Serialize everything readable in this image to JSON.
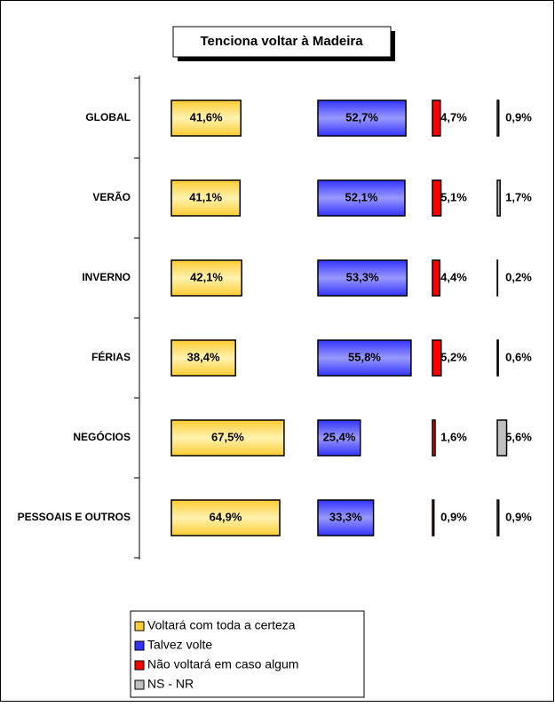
{
  "chart_data": {
    "type": "bar",
    "title": "Tenciona voltar à Madeira",
    "categories": [
      "GLOBAL",
      "VERÃO",
      "INVERNO",
      "FÉRIAS",
      "NEGÓCIOS",
      "PESSOAIS E OUTROS"
    ],
    "series": [
      {
        "name": "Voltará com toda a certeza",
        "color": "#ffcc33",
        "values": [
          41.6,
          41.1,
          42.1,
          38.4,
          67.5,
          64.9
        ],
        "value_labels": [
          "41,6%",
          "41,1%",
          "42,1%",
          "38,4%",
          "67,5%",
          "64,9%"
        ]
      },
      {
        "name": "Talvez volte",
        "color": "#3333ff",
        "values": [
          52.7,
          52.1,
          53.3,
          55.8,
          25.4,
          33.3
        ],
        "value_labels": [
          "52,7%",
          "52,1%",
          "53,3%",
          "55,8%",
          "25,4%",
          "33,3%"
        ]
      },
      {
        "name": "Não voltará em caso algum",
        "color": "#ff0000",
        "values": [
          4.7,
          5.1,
          4.4,
          5.2,
          1.6,
          0.9
        ],
        "value_labels": [
          "4,7%",
          "5,1%",
          "4,4%",
          "5,2%",
          "1,6%",
          "0,9%"
        ]
      },
      {
        "name": "NS - NR",
        "color": "#c0c0c0",
        "values": [
          0.9,
          1.7,
          0.2,
          0.6,
          5.6,
          0.9
        ],
        "value_labels": [
          "0,9%",
          "1,7%",
          "0,2%",
          "0,6%",
          "5,6%",
          "0,9%"
        ]
      }
    ]
  }
}
